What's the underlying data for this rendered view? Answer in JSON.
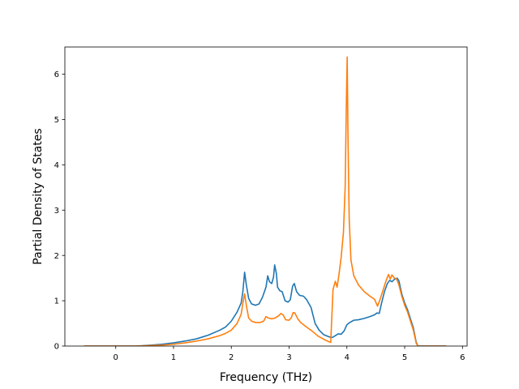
{
  "chart_data": {
    "type": "line",
    "title": "",
    "xlabel": "Frequency (THz)",
    "ylabel": "Partial Density of States",
    "xlim": [
      -0.88,
      6.08
    ],
    "ylim": [
      0,
      6.6
    ],
    "xticks": [
      0,
      1,
      2,
      3,
      4,
      5,
      6
    ],
    "yticks": [
      0,
      1,
      2,
      3,
      4,
      5,
      6
    ],
    "grid": false,
    "legend": "none",
    "series": [
      {
        "color": "#1f77b4",
        "points": [
          [
            -0.55,
            0
          ],
          [
            0.35,
            0
          ],
          [
            0.6,
            0.02
          ],
          [
            0.8,
            0.04
          ],
          [
            1.0,
            0.07
          ],
          [
            1.2,
            0.11
          ],
          [
            1.4,
            0.16
          ],
          [
            1.6,
            0.24
          ],
          [
            1.8,
            0.35
          ],
          [
            1.9,
            0.42
          ],
          [
            2.0,
            0.55
          ],
          [
            2.1,
            0.75
          ],
          [
            2.17,
            0.95
          ],
          [
            2.2,
            1.2
          ],
          [
            2.23,
            1.63
          ],
          [
            2.26,
            1.35
          ],
          [
            2.3,
            1.05
          ],
          [
            2.35,
            0.93
          ],
          [
            2.42,
            0.9
          ],
          [
            2.48,
            0.93
          ],
          [
            2.54,
            1.08
          ],
          [
            2.6,
            1.3
          ],
          [
            2.63,
            1.55
          ],
          [
            2.66,
            1.42
          ],
          [
            2.7,
            1.38
          ],
          [
            2.73,
            1.52
          ],
          [
            2.75,
            1.79
          ],
          [
            2.78,
            1.6
          ],
          [
            2.8,
            1.3
          ],
          [
            2.84,
            1.22
          ],
          [
            2.88,
            1.2
          ],
          [
            2.93,
            1.0
          ],
          [
            2.98,
            0.97
          ],
          [
            3.02,
            1.02
          ],
          [
            3.06,
            1.32
          ],
          [
            3.09,
            1.38
          ],
          [
            3.13,
            1.2
          ],
          [
            3.18,
            1.12
          ],
          [
            3.25,
            1.1
          ],
          [
            3.3,
            1.03
          ],
          [
            3.38,
            0.85
          ],
          [
            3.45,
            0.5
          ],
          [
            3.52,
            0.35
          ],
          [
            3.6,
            0.25
          ],
          [
            3.7,
            0.2
          ],
          [
            3.75,
            0.19
          ],
          [
            3.8,
            0.23
          ],
          [
            3.85,
            0.27
          ],
          [
            3.9,
            0.26
          ],
          [
            3.95,
            0.33
          ],
          [
            4.0,
            0.47
          ],
          [
            4.05,
            0.52
          ],
          [
            4.12,
            0.57
          ],
          [
            4.2,
            0.58
          ],
          [
            4.3,
            0.61
          ],
          [
            4.4,
            0.65
          ],
          [
            4.48,
            0.69
          ],
          [
            4.52,
            0.73
          ],
          [
            4.56,
            0.72
          ],
          [
            4.6,
            0.95
          ],
          [
            4.65,
            1.2
          ],
          [
            4.7,
            1.38
          ],
          [
            4.74,
            1.45
          ],
          [
            4.78,
            1.42
          ],
          [
            4.82,
            1.47
          ],
          [
            4.87,
            1.5
          ],
          [
            4.9,
            1.44
          ],
          [
            4.95,
            1.15
          ],
          [
            5.0,
            0.95
          ],
          [
            5.05,
            0.8
          ],
          [
            5.1,
            0.6
          ],
          [
            5.15,
            0.4
          ],
          [
            5.2,
            0.08
          ],
          [
            5.23,
            0
          ],
          [
            5.72,
            0
          ]
        ]
      },
      {
        "color": "#ff7f0e",
        "points": [
          [
            -0.55,
            0
          ],
          [
            0.35,
            0
          ],
          [
            0.6,
            0.01
          ],
          [
            0.8,
            0.02
          ],
          [
            1.0,
            0.04
          ],
          [
            1.2,
            0.07
          ],
          [
            1.4,
            0.11
          ],
          [
            1.6,
            0.16
          ],
          [
            1.8,
            0.23
          ],
          [
            1.9,
            0.28
          ],
          [
            2.0,
            0.35
          ],
          [
            2.1,
            0.5
          ],
          [
            2.17,
            0.7
          ],
          [
            2.2,
            0.95
          ],
          [
            2.23,
            1.15
          ],
          [
            2.26,
            0.9
          ],
          [
            2.3,
            0.62
          ],
          [
            2.35,
            0.55
          ],
          [
            2.42,
            0.52
          ],
          [
            2.5,
            0.52
          ],
          [
            2.56,
            0.55
          ],
          [
            2.6,
            0.65
          ],
          [
            2.64,
            0.62
          ],
          [
            2.7,
            0.6
          ],
          [
            2.76,
            0.62
          ],
          [
            2.82,
            0.67
          ],
          [
            2.86,
            0.72
          ],
          [
            2.9,
            0.68
          ],
          [
            2.94,
            0.58
          ],
          [
            3.0,
            0.57
          ],
          [
            3.04,
            0.63
          ],
          [
            3.07,
            0.74
          ],
          [
            3.1,
            0.73
          ],
          [
            3.15,
            0.6
          ],
          [
            3.2,
            0.52
          ],
          [
            3.3,
            0.42
          ],
          [
            3.4,
            0.33
          ],
          [
            3.5,
            0.22
          ],
          [
            3.6,
            0.15
          ],
          [
            3.68,
            0.1
          ],
          [
            3.72,
            0.08
          ],
          [
            3.76,
            1.25
          ],
          [
            3.8,
            1.43
          ],
          [
            3.83,
            1.3
          ],
          [
            3.86,
            1.55
          ],
          [
            3.9,
            1.95
          ],
          [
            3.94,
            2.5
          ],
          [
            3.97,
            3.5
          ],
          [
            3.99,
            5.3
          ],
          [
            4.005,
            6.38
          ],
          [
            4.02,
            4.5
          ],
          [
            4.04,
            2.8
          ],
          [
            4.07,
            1.9
          ],
          [
            4.12,
            1.55
          ],
          [
            4.2,
            1.35
          ],
          [
            4.3,
            1.2
          ],
          [
            4.4,
            1.1
          ],
          [
            4.48,
            1.03
          ],
          [
            4.53,
            0.88
          ],
          [
            4.58,
            1.05
          ],
          [
            4.63,
            1.25
          ],
          [
            4.68,
            1.45
          ],
          [
            4.72,
            1.58
          ],
          [
            4.75,
            1.48
          ],
          [
            4.78,
            1.57
          ],
          [
            4.82,
            1.5
          ],
          [
            4.86,
            1.48
          ],
          [
            4.9,
            1.35
          ],
          [
            4.95,
            1.1
          ],
          [
            5.0,
            0.9
          ],
          [
            5.05,
            0.75
          ],
          [
            5.1,
            0.55
          ],
          [
            5.15,
            0.35
          ],
          [
            5.2,
            0.06
          ],
          [
            5.23,
            0
          ],
          [
            5.72,
            0
          ]
        ]
      }
    ]
  }
}
